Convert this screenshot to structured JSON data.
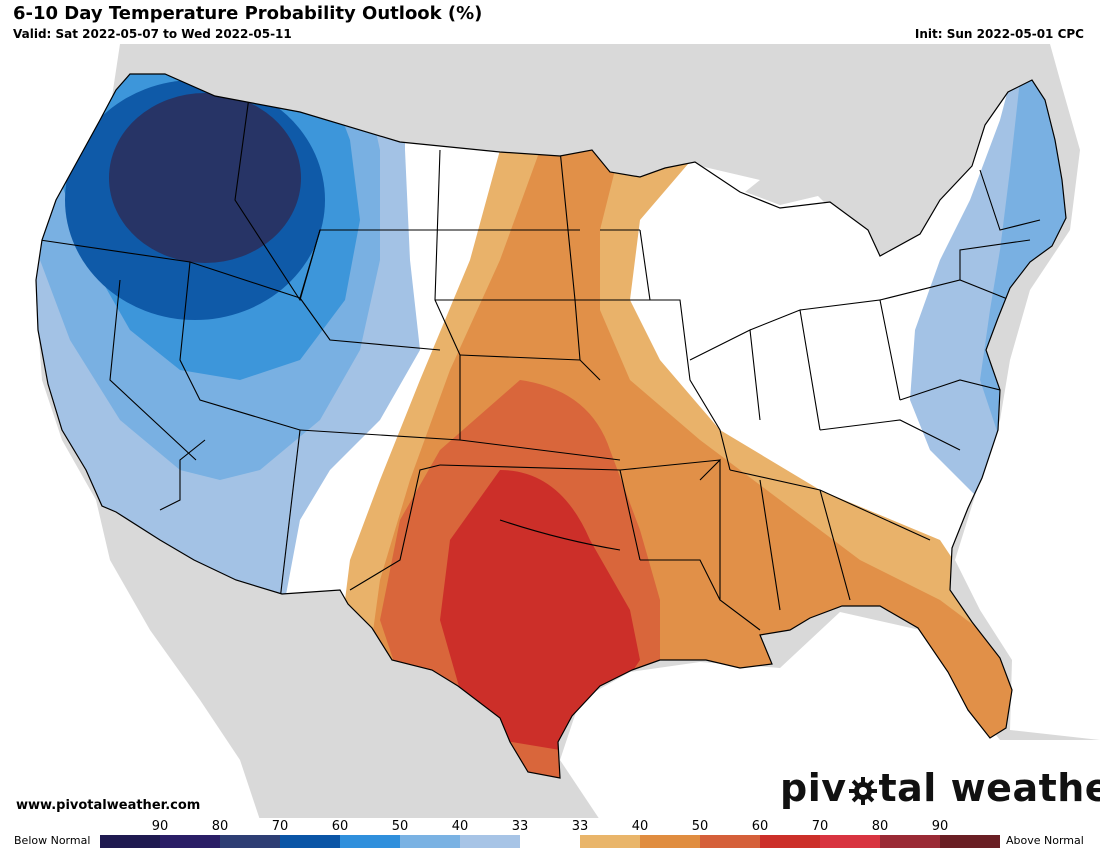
{
  "header": {
    "title": "6-10 Day Temperature Probability Outlook (%)",
    "valid": "Valid: Sat 2022-05-07 to Wed 2022-05-11",
    "init": "Init: Sun 2022-05-01 CPC"
  },
  "footer": {
    "website": "www.pivotalweather.com",
    "brand_before": "piv",
    "brand_after": "tal weather"
  },
  "legend": {
    "below_label": "Below Normal",
    "above_label": "Above Normal",
    "tick_labels": [
      "90",
      "80",
      "70",
      "60",
      "50",
      "40",
      "33",
      "33",
      "40",
      "50",
      "60",
      "70",
      "80",
      "90"
    ],
    "colors": [
      "#1f1a50",
      "#2a1e66",
      "#2e3e74",
      "#0a55a6",
      "#2f8fdc",
      "#7ab2e3",
      "#a7c4e6",
      "#ffffff",
      "#e9b56a",
      "#e08d40",
      "#d5603a",
      "#cc2f29",
      "#d83440",
      "#9a2a35",
      "#6a1f24"
    ]
  },
  "map_colors": {
    "background": "#d9d9d9",
    "water": "#ffffff",
    "land": "#ffffff",
    "below_33": "#a3c2e5",
    "below_40": "#79b0e2",
    "below_50": "#3d96da",
    "below_60": "#0f5aa8",
    "below_70": "#273466",
    "above_33": "#e9b26a",
    "above_40": "#e19048",
    "above_50": "#d9663b",
    "above_60": "#cc2f29"
  }
}
